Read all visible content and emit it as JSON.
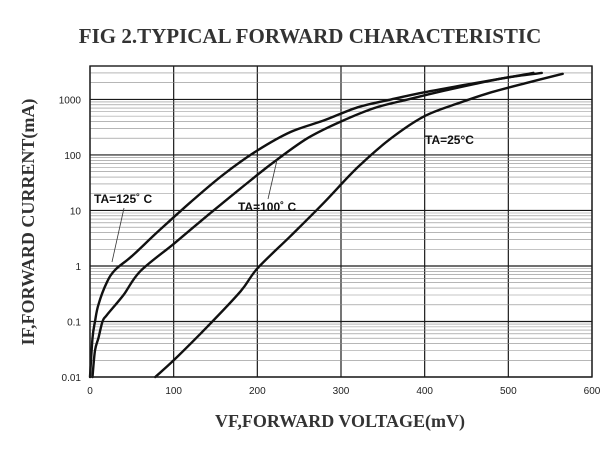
{
  "chart_data": {
    "type": "line",
    "title": "FIG 2.TYPICAL FORWARD CHARACTERISTIC",
    "xlabel": "VF,FORWARD VOLTAGE(mV)",
    "ylabel": "IF,FORWARD CURRENT(mA)",
    "xlim": [
      0,
      600
    ],
    "ylim": [
      0.01,
      4000
    ],
    "yscale": "log",
    "grid": true,
    "x_ticks": [
      "0",
      "100",
      "200",
      "300",
      "400",
      "500",
      "600"
    ],
    "x_tick_values": [
      0,
      100,
      200,
      300,
      400,
      500,
      600
    ],
    "y_ticks": [
      "0.01",
      "0.1",
      "1",
      "10",
      "100",
      "1000"
    ],
    "y_tick_values": [
      0.01,
      0.1,
      1,
      10,
      100,
      1000
    ],
    "series": [
      {
        "name": "TA=125° C",
        "x": [
          0,
          3,
          6,
          10,
          20,
          30,
          50,
          80,
          120,
          160,
          200,
          240,
          280,
          320,
          360,
          400,
          450,
          500,
          530
        ],
        "y": [
          0.01,
          0.05,
          0.1,
          0.2,
          0.5,
          0.85,
          1.5,
          4,
          14,
          45,
          120,
          260,
          420,
          720,
          1000,
          1350,
          1850,
          2500,
          3000
        ]
      },
      {
        "name": "TA=100° C",
        "x": [
          3,
          6,
          10,
          15,
          20,
          40,
          60,
          100,
          140,
          180,
          220,
          260,
          300,
          340,
          380,
          420,
          460,
          500,
          540
        ],
        "y": [
          0.01,
          0.03,
          0.05,
          0.1,
          0.13,
          0.3,
          0.8,
          2.5,
          8,
          25,
          75,
          200,
          400,
          700,
          1000,
          1400,
          1900,
          2500,
          3000
        ]
      },
      {
        "name": "TA=25°C",
        "x": [
          78,
          100,
          140,
          180,
          200,
          240,
          280,
          320,
          360,
          400,
          440,
          480,
          520,
          565
        ],
        "y": [
          0.01,
          0.02,
          0.08,
          0.35,
          0.9,
          3.5,
          14,
          60,
          200,
          500,
          850,
          1350,
          1950,
          2900
        ]
      }
    ],
    "annotations": [
      {
        "text": "TA=125˚ C",
        "series_index": 0
      },
      {
        "text": "TA=100˚ C",
        "series_index": 1
      },
      {
        "text": "TA=25°C",
        "series_index": 2
      }
    ]
  }
}
